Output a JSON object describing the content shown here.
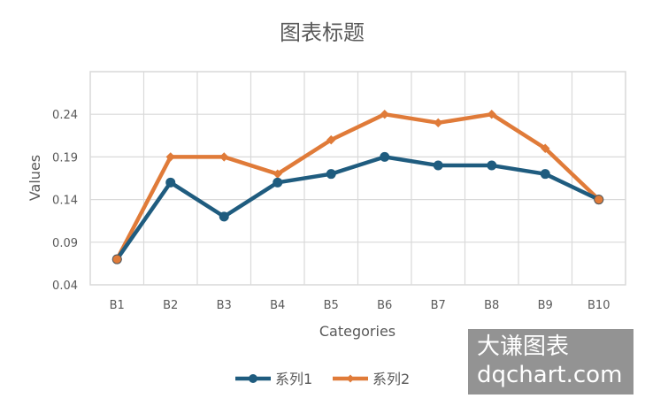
{
  "chart_data": {
    "type": "line",
    "title": "图表标题",
    "xlabel": "Categories",
    "ylabel": "Values",
    "categories": [
      "B1",
      "B2",
      "B3",
      "B4",
      "B5",
      "B6",
      "B7",
      "B8",
      "B9",
      "B10"
    ],
    "yticks": [
      "0.04",
      "0.09",
      "0.14",
      "0.19",
      "0.24"
    ],
    "ylim": [
      0.04,
      0.29
    ],
    "grid": true,
    "legend_position": "bottom",
    "series": [
      {
        "name": "系列1",
        "color": "#1F5C7F",
        "marker": "circle",
        "values": [
          0.07,
          0.16,
          0.12,
          0.16,
          0.17,
          0.19,
          0.18,
          0.18,
          0.17,
          0.14
        ]
      },
      {
        "name": "系列2",
        "color": "#E07B39",
        "marker": "diamond",
        "values": [
          0.07,
          0.19,
          0.19,
          0.17,
          0.21,
          0.24,
          0.23,
          0.24,
          0.2,
          0.14
        ]
      }
    ]
  },
  "watermark": {
    "line1": "大谦图表",
    "line2": "dqchart.com"
  }
}
